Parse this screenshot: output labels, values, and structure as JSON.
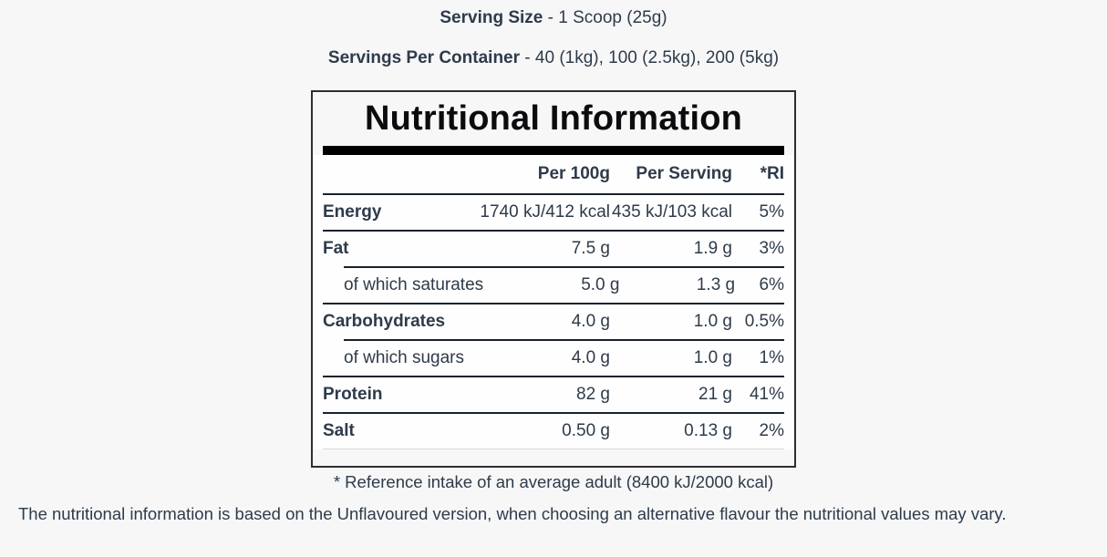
{
  "page": {
    "serving_size_label": "Serving Size",
    "serving_size_value": "- 1 Scoop (25g)",
    "servings_label": "Servings Per Container",
    "servings_value": "- 40 (1kg), 100 (2.5kg), 200 (5kg)",
    "footnote": "* Reference intake of an average adult (8400 kJ/2000 kcal)",
    "disclaimer": "The nutritional information is based on the Unflavoured version, when choosing an alternative flavour the nutritional values may vary."
  },
  "table": {
    "title": "Nutritional Information",
    "columns": [
      "",
      "Per 100g",
      "Per Serving",
      "*RI"
    ],
    "rows": [
      {
        "label": "Energy",
        "per100": "1740 kJ/412 kcal",
        "serving": "435 kJ/103 kcal",
        "ri": "5%",
        "indent": false
      },
      {
        "label": "Fat",
        "per100": "7.5 g",
        "serving": "1.9 g",
        "ri": "3%",
        "indent": false
      },
      {
        "label": "of which saturates",
        "per100": "5.0 g",
        "serving": "1.3 g",
        "ri": "6%",
        "indent": true
      },
      {
        "label": "Carbohydrates",
        "per100": "4.0 g",
        "serving": "1.0 g",
        "ri": "0.5%",
        "indent": false
      },
      {
        "label": "of which sugars",
        "per100": "4.0 g",
        "serving": "1.0 g",
        "ri": "1%",
        "indent": true
      },
      {
        "label": "Protein",
        "per100": "82 g",
        "serving": "21 g",
        "ri": "41%",
        "indent": false
      },
      {
        "label": "Salt",
        "per100": "0.50 g",
        "serving": "0.13 g",
        "ri": "2%",
        "indent": false
      }
    ]
  },
  "colors": {
    "background": "#f7f7f8",
    "text": "#2e3b4a",
    "title": "#0c0c0e",
    "accent_bar": "#000000",
    "divider": "#18222c",
    "divider_light": "#d9dbdd",
    "box_border": "#2e2e30",
    "table_background": "#fffefe"
  }
}
